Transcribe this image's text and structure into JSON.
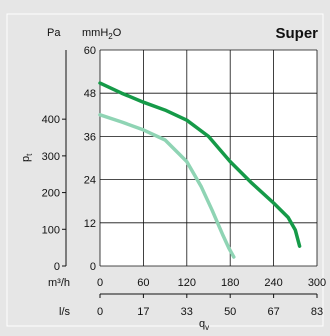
{
  "chart_data": {
    "type": "line",
    "title": "Super",
    "pressure_units": {
      "pa": "Pa",
      "mmh2o": "mmH2O"
    },
    "ylabel": "p",
    "ylabel_sub": "t",
    "xlabel": "q",
    "xlabel_sub": "v",
    "x_units": {
      "m3h": "m³/h",
      "ls": "l/s"
    },
    "x_ticks_m3h": [
      "0",
      "60",
      "120",
      "180",
      "240",
      "300"
    ],
    "x_ticks_ls": [
      "0",
      "17",
      "33",
      "50",
      "67",
      "83"
    ],
    "y_ticks_mmh2o": [
      "0",
      "12",
      "24",
      "36",
      "48",
      "60"
    ],
    "y_ticks_pa": [
      "0",
      "100",
      "200",
      "300",
      "400"
    ],
    "xlim": [
      0,
      300
    ],
    "ylim": [
      0,
      60
    ],
    "grid": true,
    "series": [
      {
        "color": "#159a48",
        "x": [
          0,
          30,
          60,
          90,
          120,
          150,
          180,
          210,
          240,
          260,
          270,
          276
        ],
        "y": [
          50.8,
          48,
          45.5,
          43.3,
          40.5,
          36,
          29,
          23,
          17.5,
          13.5,
          10,
          5.5
        ]
      },
      {
        "color": "#8fd4b4",
        "x": [
          0,
          30,
          60,
          90,
          120,
          140,
          155,
          170,
          178,
          185
        ],
        "y": [
          42,
          40,
          37.8,
          35,
          29,
          22,
          15.5,
          8.5,
          5,
          2.5
        ]
      }
    ]
  }
}
